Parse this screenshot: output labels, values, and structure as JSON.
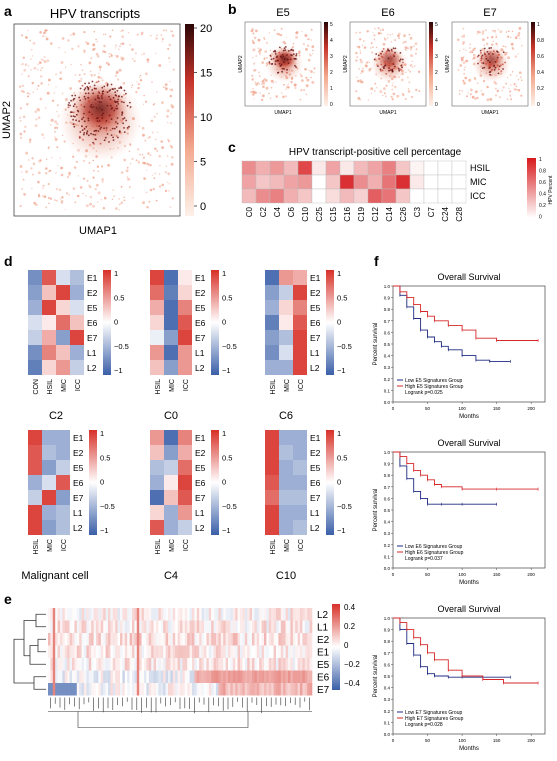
{
  "panels": {
    "a": {
      "letter": "a",
      "title": "HPV transcripts",
      "xlabel": "UMAP1",
      "ylabel": "UMAP2",
      "colorbar_ticks": [
        "20",
        "15",
        "10",
        "5",
        "0"
      ]
    },
    "b": {
      "letter": "b",
      "maps": [
        {
          "title": "E5",
          "xlabel": "UMAP1",
          "ylabel": "UMAP2",
          "ticks": [
            "5",
            "4",
            "3",
            "2",
            "1",
            "0"
          ]
        },
        {
          "title": "E6",
          "xlabel": "UMAP1",
          "ylabel": "UMAP2",
          "ticks": [
            "5",
            "4",
            "3",
            "2",
            "1",
            "0"
          ]
        },
        {
          "title": "E7",
          "xlabel": "UMAP1",
          "ylabel": "UMAP2",
          "ticks": [
            "1",
            "0.8",
            "0.6",
            "0.4",
            "0.2",
            "0"
          ]
        }
      ]
    },
    "c": {
      "letter": "c",
      "title": "HPV transcript-positive cell percentage",
      "rows": [
        "HSIL",
        "MIC",
        "ICC"
      ],
      "cols": [
        "C0",
        "C2",
        "C4",
        "C6",
        "C10",
        "C25",
        "C15",
        "C16",
        "C19",
        "C12",
        "C14",
        "C26",
        "C3",
        "C7",
        "C24",
        "C28"
      ],
      "values": [
        [
          0.5,
          0.35,
          0.45,
          0.3,
          0.8,
          0.1,
          0.4,
          0.1,
          0.3,
          0.4,
          0.55,
          0.25,
          0.05,
          0,
          0,
          0
        ],
        [
          0.4,
          0.25,
          0.3,
          0.4,
          0.45,
          0,
          0.25,
          0.9,
          0.5,
          0.35,
          0.6,
          0.9,
          0.1,
          0,
          0,
          0
        ],
        [
          0.3,
          0.5,
          0.55,
          0.35,
          0.25,
          0,
          0.15,
          0.3,
          0.2,
          0.7,
          0.6,
          0.25,
          0,
          0,
          0,
          0
        ]
      ],
      "colorbar_label": "HPV Percent",
      "colorbar_ticks": [
        "1",
        "0.8",
        "0.6",
        "0.4",
        "0.2",
        "0"
      ]
    },
    "d": {
      "letter": "d",
      "colorbar_ticks": [
        "1",
        "0.5",
        "0",
        "−0.5",
        "−1"
      ],
      "heatmaps": [
        {
          "title": "C2",
          "cols": [
            "CON",
            "HSIL",
            "MIC",
            "ICC"
          ],
          "rows": [
            "E1",
            "E2",
            "E5",
            "E6",
            "E7",
            "L1",
            "L2"
          ],
          "values": [
            [
              -0.7,
              0.8,
              -0.2,
              -0.4
            ],
            [
              -0.6,
              0.3,
              0.9,
              -0.5
            ],
            [
              -0.5,
              0.9,
              0.2,
              -0.2
            ],
            [
              -0.2,
              0.1,
              0.7,
              0.3
            ],
            [
              -0.3,
              0.4,
              -0.6,
              0.9
            ],
            [
              -0.7,
              0.6,
              0.3,
              -0.5
            ],
            [
              -0.8,
              0.2,
              0.5,
              -0.3
            ]
          ]
        },
        {
          "title": "C0",
          "cols": [
            "HSIL",
            "MIC",
            "ICC"
          ],
          "rows": [
            "E1",
            "E2",
            "E5",
            "E6",
            "E7",
            "L1",
            "L2"
          ],
          "values": [
            [
              0.9,
              -0.9,
              0.1
            ],
            [
              0.7,
              -0.8,
              0.2
            ],
            [
              0.4,
              -0.9,
              0.6
            ],
            [
              0.2,
              -0.9,
              0.8
            ],
            [
              -0.1,
              -0.6,
              0.9
            ],
            [
              0.5,
              -0.9,
              0.5
            ],
            [
              0.3,
              -0.6,
              0.5
            ]
          ]
        },
        {
          "title": "C6",
          "cols": [
            "HSIL",
            "MIC",
            "ICC"
          ],
          "rows": [
            "E1",
            "E2",
            "E5",
            "E6",
            "E7",
            "L1",
            "L2"
          ],
          "values": [
            [
              -0.9,
              0.5,
              0.4
            ],
            [
              -0.6,
              -0.3,
              0.9
            ],
            [
              -0.5,
              0.2,
              0.6
            ],
            [
              -0.8,
              0.1,
              0.8
            ],
            [
              -0.6,
              -0.4,
              0.9
            ],
            [
              -0.7,
              -0.2,
              0.9
            ],
            [
              -0.5,
              -0.5,
              0.9
            ]
          ]
        },
        {
          "title": "Malignant cell",
          "cols": [
            "HSIL",
            "MIC",
            "ICC"
          ],
          "rows": [
            "E1",
            "E2",
            "E5",
            "E6",
            "E7",
            "L1",
            "L2"
          ],
          "values": [
            [
              0.9,
              -0.5,
              -0.5
            ],
            [
              0.8,
              -0.4,
              -0.5
            ],
            [
              0.8,
              -0.6,
              -0.3
            ],
            [
              -0.5,
              -0.2,
              0.8
            ],
            [
              -0.3,
              0.9,
              -0.6
            ],
            [
              0.9,
              -0.5,
              -0.4
            ],
            [
              0.9,
              -0.6,
              -0.4
            ]
          ]
        },
        {
          "title": "C4",
          "cols": [
            "HSIL",
            "MIC",
            "ICC"
          ],
          "rows": [
            "E1",
            "E2",
            "E5",
            "E6",
            "E7",
            "L1",
            "L2"
          ],
          "values": [
            [
              0.5,
              -0.9,
              0.6
            ],
            [
              0.3,
              -0.6,
              0.4
            ],
            [
              -0.4,
              -0.3,
              0.7
            ],
            [
              -0.5,
              0.1,
              0.9
            ],
            [
              -0.9,
              0.3,
              0.8
            ],
            [
              0.2,
              -0.5,
              0.5
            ],
            [
              0.8,
              -0.5,
              -0.3
            ]
          ]
        },
        {
          "title": "C10",
          "cols": [
            "HSIL",
            "MIC",
            "ICC"
          ],
          "rows": [
            "E1",
            "E2",
            "E5",
            "E6",
            "E7",
            "L1",
            "L2"
          ],
          "values": [
            [
              0.9,
              -0.5,
              -0.5
            ],
            [
              0.9,
              -0.4,
              -0.5
            ],
            [
              0.9,
              -0.5,
              -0.4
            ],
            [
              0.8,
              -0.5,
              -0.5
            ],
            [
              0.7,
              -0.4,
              -0.4
            ],
            [
              0.9,
              -0.5,
              -0.5
            ],
            [
              0.9,
              -0.5,
              -0.4
            ]
          ]
        }
      ]
    },
    "e": {
      "letter": "e",
      "rows": [
        "L2",
        "L1",
        "E2",
        "E1",
        "E5",
        "E6",
        "E7"
      ],
      "colorbar_ticks": [
        "0.4",
        "0.2",
        "0",
        "−0.2",
        "−0.4"
      ]
    },
    "f": {
      "letter": "f",
      "plots": [
        {
          "title": "Overall Survival",
          "ylabel": "Percent survival",
          "xlabel": "Months",
          "yticks": [
            "1.0",
            "0.9",
            "0.8",
            "0.7",
            "0.6",
            "0.5",
            "0.4",
            "0.3",
            "0.2",
            "0.1",
            "0.0"
          ],
          "xticks": [
            "0",
            "50",
            "100",
            "150",
            "200"
          ],
          "legend": [
            "Low E5 Signatures Group",
            "High E5 Signatures Group",
            "Logrank p=0.025"
          ]
        },
        {
          "title": "Overall Survival",
          "ylabel": "Percent survival",
          "xlabel": "Months",
          "yticks": [
            "1.0",
            "0.9",
            "0.8",
            "0.7",
            "0.6",
            "0.5",
            "0.4",
            "0.3",
            "0.2",
            "0.1",
            "0.0"
          ],
          "xticks": [
            "0",
            "50",
            "100",
            "150",
            "200"
          ],
          "legend": [
            "Low E6 Signatures Group",
            "High E6 Signatures Group",
            "Logrank p=0.037"
          ]
        },
        {
          "title": "Overall Survival",
          "ylabel": "Percent survival",
          "xlabel": "Months",
          "yticks": [
            "1.0",
            "0.9",
            "0.8",
            "0.7",
            "0.6",
            "0.5",
            "0.4",
            "0.3",
            "0.2",
            "0.1",
            "0.0"
          ],
          "xticks": [
            "0",
            "50",
            "100",
            "150",
            "200"
          ],
          "legend": [
            "Low E7 Signatures Group",
            "High E7 Signatures Group",
            "Logrank p=0.028"
          ]
        }
      ]
    }
  },
  "colors": {
    "red_high": "#b2182b",
    "blue_low": "#2166ac",
    "survival_low": "#1f2a80",
    "survival_high": "#d62728"
  },
  "chart_data": [
    {
      "type": "heatmap",
      "panel": "c",
      "rows": [
        "HSIL",
        "MIC",
        "ICC"
      ],
      "cols": [
        "C0",
        "C2",
        "C4",
        "C6",
        "C10",
        "C25",
        "C15",
        "C16",
        "C19",
        "C12",
        "C14",
        "C26",
        "C3",
        "C7",
        "C24",
        "C28"
      ],
      "title": "HPV transcript-positive cell percentage"
    },
    {
      "type": "line",
      "panel": "f",
      "series": [
        {
          "name": "Low E5 Signatures Group",
          "x": [
            0,
            10,
            20,
            30,
            40,
            50,
            60,
            70,
            80,
            100,
            120,
            140,
            170
          ],
          "y": [
            1,
            0.92,
            0.82,
            0.72,
            0.62,
            0.56,
            0.52,
            0.48,
            0.45,
            0.4,
            0.36,
            0.35,
            0.35
          ]
        },
        {
          "name": "High E5 Signatures Group",
          "x": [
            0,
            10,
            20,
            30,
            40,
            50,
            60,
            80,
            100,
            120,
            150,
            210
          ],
          "y": [
            1,
            0.95,
            0.9,
            0.84,
            0.78,
            0.74,
            0.7,
            0.66,
            0.62,
            0.55,
            0.53,
            0.53
          ]
        },
        {
          "name": "Low E6 Signatures Group",
          "x": [
            0,
            10,
            20,
            30,
            40,
            50,
            70,
            100,
            150
          ],
          "y": [
            1,
            0.88,
            0.77,
            0.66,
            0.6,
            0.55,
            0.55,
            0.55,
            0.55
          ]
        },
        {
          "name": "High E6 Signatures Group",
          "x": [
            0,
            10,
            20,
            30,
            40,
            50,
            60,
            70,
            100,
            150,
            210
          ],
          "y": [
            1,
            0.96,
            0.9,
            0.84,
            0.8,
            0.76,
            0.72,
            0.7,
            0.68,
            0.68,
            0.68
          ]
        },
        {
          "name": "Low E7 Signatures Group",
          "x": [
            0,
            10,
            20,
            30,
            40,
            50,
            60,
            80,
            100,
            130,
            170
          ],
          "y": [
            1,
            0.9,
            0.78,
            0.68,
            0.58,
            0.52,
            0.5,
            0.49,
            0.49,
            0.49,
            0.49
          ]
        },
        {
          "name": "High E7 Signatures Group",
          "x": [
            0,
            10,
            20,
            30,
            40,
            50,
            60,
            80,
            100,
            130,
            160,
            210
          ],
          "y": [
            1,
            0.96,
            0.9,
            0.83,
            0.77,
            0.7,
            0.64,
            0.55,
            0.5,
            0.47,
            0.44,
            0.44
          ]
        }
      ]
    }
  ]
}
